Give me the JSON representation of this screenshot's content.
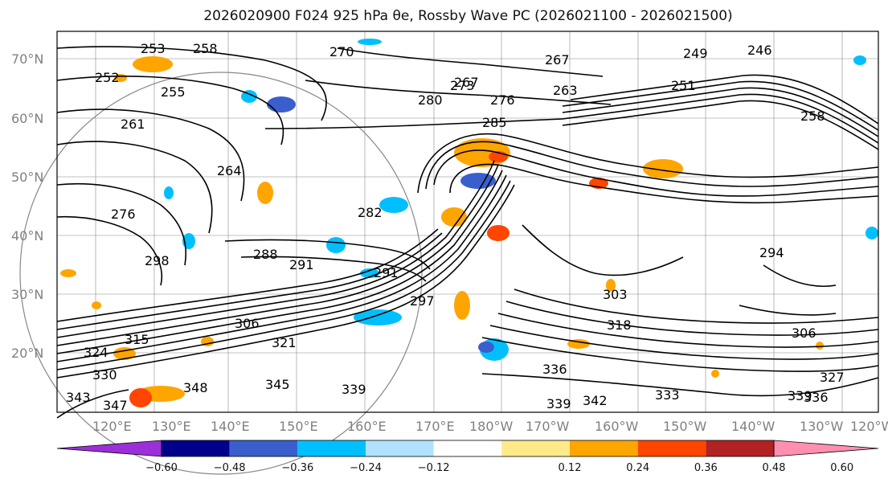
{
  "title": "2026020900 F024 925 hPa θe, Rossby Wave PC (2026021100 - 2026021500)",
  "lat_labels": [
    "70°N",
    "60°N",
    "50°N",
    "40°N",
    "30°N",
    "20°N"
  ],
  "lon_labels": [
    "120°E",
    "130°E",
    "140°E",
    "150°E",
    "160°E",
    "170°E",
    "180°W",
    "170°W",
    "160°W",
    "150°W",
    "140°W",
    "130°W",
    "120°W"
  ],
  "contour_labels": [
    "253",
    "258",
    "270",
    "267",
    "267",
    "276",
    "263",
    "249",
    "246",
    "251",
    "252",
    "255",
    "261",
    "264",
    "280",
    "273",
    "285",
    "258",
    "282",
    "294",
    "276",
    "288",
    "291",
    "291",
    "297",
    "298",
    "315",
    "306",
    "303",
    "318",
    "306",
    "324",
    "321",
    "330",
    "336",
    "333",
    "345",
    "348",
    "339",
    "339",
    "342",
    "336",
    "327",
    "339",
    "343",
    "347"
  ],
  "colorbar": {
    "ticks": [
      "−0.60",
      "−0.48",
      "−0.36",
      "−0.24",
      "−0.12",
      "0.12",
      "0.24",
      "0.36",
      "0.48",
      "0.60"
    ],
    "colors": [
      "#9b30d9",
      "#00008b",
      "#3a5fcd",
      "#00bfff",
      "#b0e2ff",
      "#ffffff",
      "#ffe98a",
      "#ffa500",
      "#ff4500",
      "#b22222",
      "#ff8fb0"
    ]
  }
}
